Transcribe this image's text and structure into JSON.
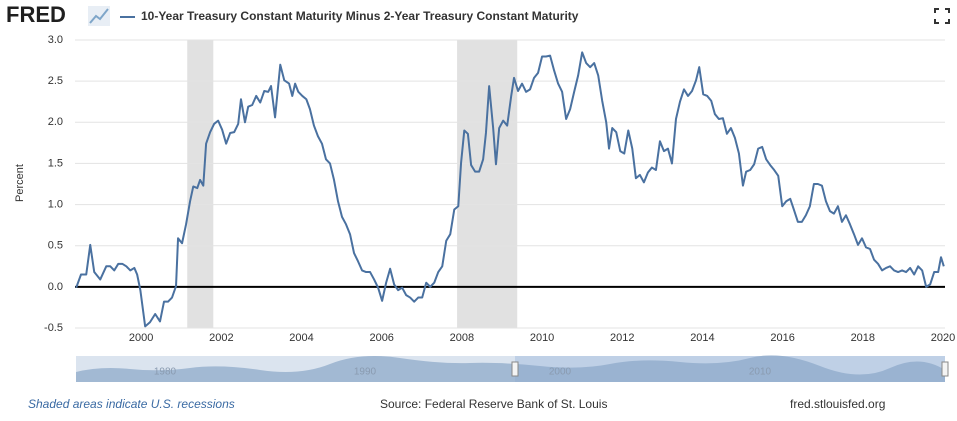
{
  "header": {
    "logo": "FRED"
  },
  "chart_data": {
    "type": "line",
    "y_label": "Percent",
    "x": [
      1998.38,
      1998.5,
      1998.63,
      1998.73,
      1998.83,
      1998.98,
      1999.13,
      1999.23,
      1999.33,
      1999.43,
      1999.53,
      1999.63,
      1999.73,
      1999.83,
      1999.9,
      1999.98,
      2000.1,
      2000.22,
      2000.35,
      2000.47,
      2000.57,
      2000.67,
      2000.77,
      2000.87,
      2000.92,
      2001.02,
      2001.12,
      2001.22,
      2001.3,
      2001.4,
      2001.47,
      2001.55,
      2001.62,
      2001.72,
      2001.82,
      2001.92,
      2002.02,
      2002.12,
      2002.22,
      2002.32,
      2002.42,
      2002.49,
      2002.59,
      2002.67,
      2002.77,
      2002.87,
      2002.97,
      2003.07,
      2003.17,
      2003.24,
      2003.34,
      2003.47,
      2003.57,
      2003.69,
      2003.77,
      2003.84,
      2003.92,
      2004.02,
      2004.12,
      2004.21,
      2004.31,
      2004.41,
      2004.51,
      2004.61,
      2004.71,
      2004.81,
      2004.91,
      2005.01,
      2005.11,
      2005.21,
      2005.31,
      2005.41,
      2005.51,
      2005.61,
      2005.71,
      2005.81,
      2005.91,
      2006.01,
      2006.11,
      2006.21,
      2006.31,
      2006.41,
      2006.51,
      2006.61,
      2006.71,
      2006.81,
      2006.91,
      2007.01,
      2007.11,
      2007.21,
      2007.31,
      2007.41,
      2007.51,
      2007.61,
      2007.71,
      2007.81,
      2007.91,
      2007.98,
      2008.06,
      2008.15,
      2008.23,
      2008.33,
      2008.43,
      2008.53,
      2008.6,
      2008.68,
      2008.78,
      2008.85,
      2008.93,
      2009.03,
      2009.13,
      2009.23,
      2009.3,
      2009.4,
      2009.5,
      2009.6,
      2009.7,
      2009.8,
      2009.9,
      2010.0,
      2010.1,
      2010.2,
      2010.3,
      2010.4,
      2010.5,
      2010.6,
      2010.7,
      2010.8,
      2010.9,
      2011.0,
      2011.1,
      2011.2,
      2011.3,
      2011.4,
      2011.5,
      2011.6,
      2011.67,
      2011.75,
      2011.85,
      2011.95,
      2012.05,
      2012.15,
      2012.25,
      2012.34,
      2012.44,
      2012.54,
      2012.64,
      2012.74,
      2012.84,
      2012.94,
      2013.04,
      2013.14,
      2013.24,
      2013.34,
      2013.44,
      2013.54,
      2013.64,
      2013.74,
      2013.84,
      2013.92,
      2014.02,
      2014.12,
      2014.22,
      2014.31,
      2014.41,
      2014.51,
      2014.61,
      2014.71,
      2014.81,
      2014.91,
      2015.01,
      2015.09,
      2015.19,
      2015.29,
      2015.39,
      2015.49,
      2015.59,
      2015.69,
      2015.79,
      2015.89,
      2015.99,
      2016.09,
      2016.19,
      2016.28,
      2016.38,
      2016.48,
      2016.58,
      2016.68,
      2016.78,
      2016.88,
      2016.98,
      2017.08,
      2017.18,
      2017.28,
      2017.38,
      2017.48,
      2017.58,
      2017.68,
      2017.78,
      2017.88,
      2017.98,
      2018.08,
      2018.18,
      2018.28,
      2018.38,
      2018.48,
      2018.58,
      2018.68,
      2018.78,
      2018.88,
      2018.98,
      2019.08,
      2019.18,
      2019.28,
      2019.38,
      2019.48,
      2019.58,
      2019.68,
      2019.78,
      2019.88,
      2019.95,
      2020.02
    ],
    "series": [
      {
        "name": "10-Year Treasury Constant Maturity Minus 2-Year Treasury Constant Maturity",
        "color": "#4a71a0",
        "values": [
          -0.01,
          0.15,
          0.15,
          0.51,
          0.18,
          0.09,
          0.25,
          0.25,
          0.2,
          0.28,
          0.28,
          0.25,
          0.2,
          0.23,
          0.15,
          -0.04,
          -0.48,
          -0.43,
          -0.33,
          -0.42,
          -0.18,
          -0.18,
          -0.13,
          0.01,
          0.59,
          0.53,
          0.76,
          1.04,
          1.22,
          1.2,
          1.3,
          1.23,
          1.74,
          1.88,
          1.98,
          2.02,
          1.91,
          1.74,
          1.87,
          1.88,
          1.98,
          2.28,
          2.0,
          2.19,
          2.21,
          2.32,
          2.24,
          2.38,
          2.37,
          2.44,
          2.06,
          2.7,
          2.51,
          2.47,
          2.32,
          2.47,
          2.37,
          2.32,
          2.28,
          2.16,
          1.96,
          1.83,
          1.74,
          1.55,
          1.5,
          1.3,
          1.04,
          0.85,
          0.76,
          0.64,
          0.41,
          0.31,
          0.2,
          0.18,
          0.18,
          0.09,
          -0.01,
          -0.17,
          0.05,
          0.22,
          0.03,
          -0.04,
          -0.01,
          -0.1,
          -0.13,
          -0.18,
          -0.13,
          -0.13,
          0.05,
          0.0,
          0.05,
          0.18,
          0.25,
          0.56,
          0.64,
          0.94,
          0.98,
          1.51,
          1.9,
          1.86,
          1.48,
          1.4,
          1.4,
          1.55,
          1.87,
          2.44,
          1.93,
          1.49,
          1.93,
          2.02,
          1.96,
          2.32,
          2.54,
          2.38,
          2.47,
          2.37,
          2.4,
          2.54,
          2.6,
          2.8,
          2.8,
          2.81,
          2.63,
          2.47,
          2.37,
          2.04,
          2.16,
          2.37,
          2.57,
          2.85,
          2.72,
          2.67,
          2.72,
          2.57,
          2.26,
          2.0,
          1.68,
          1.93,
          1.88,
          1.65,
          1.62,
          1.9,
          1.68,
          1.32,
          1.36,
          1.27,
          1.39,
          1.45,
          1.42,
          1.77,
          1.65,
          1.68,
          1.5,
          2.04,
          2.25,
          2.4,
          2.32,
          2.38,
          2.51,
          2.67,
          2.34,
          2.32,
          2.26,
          2.1,
          2.04,
          2.05,
          1.86,
          1.93,
          1.81,
          1.62,
          1.23,
          1.4,
          1.42,
          1.49,
          1.68,
          1.7,
          1.55,
          1.48,
          1.42,
          1.35,
          0.98,
          1.04,
          1.07,
          0.94,
          0.79,
          0.79,
          0.87,
          0.98,
          1.25,
          1.25,
          1.23,
          1.04,
          0.92,
          0.89,
          0.98,
          0.79,
          0.87,
          0.76,
          0.64,
          0.51,
          0.59,
          0.48,
          0.46,
          0.33,
          0.28,
          0.2,
          0.23,
          0.25,
          0.2,
          0.18,
          0.2,
          0.18,
          0.23,
          0.15,
          0.25,
          0.2,
          0.0,
          0.03,
          0.18,
          0.18,
          0.36,
          0.25
        ]
      }
    ],
    "recessions": [
      [
        2001.15,
        2001.8
      ],
      [
        2007.88,
        2009.38
      ]
    ],
    "xlim": [
      1998.35,
      2020.05
    ],
    "xticks": [
      2000,
      2002,
      2004,
      2006,
      2008,
      2010,
      2012,
      2014,
      2016,
      2018,
      2020
    ],
    "ylim": [
      -0.5,
      3.0
    ],
    "yticks": [
      {
        "value": 3,
        "label": "3.0"
      },
      2.5,
      {
        "value": 2,
        "label": "2.0"
      },
      1.5,
      {
        "value": 1,
        "label": "1.0"
      },
      0.5,
      {
        "value": 0,
        "label": "0.0"
      },
      -0.5
    ],
    "grid": true
  },
  "navigator": {
    "labels": [
      "1980",
      "1990",
      "2000",
      "2010"
    ]
  },
  "footer": {
    "note": "Shaded areas indicate U.S. recessions",
    "source": "Source: Federal Reserve Bank of St. Louis",
    "site": "fred.stlouisfed.org"
  }
}
